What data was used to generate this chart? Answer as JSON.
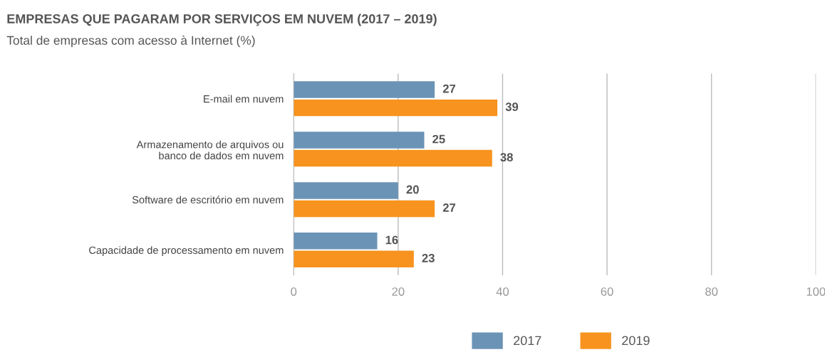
{
  "chart_data": {
    "type": "bar",
    "orientation": "horizontal",
    "title": "EMPRESAS QUE PAGARAM POR SERVIÇOS EM NUVEM (2017 – 2019)",
    "subtitle": "Total de empresas com acesso à Internet (%)",
    "categories": [
      "E-mail em nuvem",
      "Armazenamento de arquivos ou\nbanco de dados em nuvem",
      "Software de escritório em nuvem",
      "Capacidade de processamento em nuvem"
    ],
    "series": [
      {
        "name": "2017",
        "color": "#6b93b6",
        "values": [
          27,
          25,
          20,
          16
        ]
      },
      {
        "name": "2019",
        "color": "#f7931e",
        "values": [
          39,
          38,
          27,
          23
        ]
      }
    ],
    "xlim": [
      0,
      100
    ],
    "xticks": [
      0,
      20,
      40,
      60,
      80,
      100
    ],
    "grid": "x",
    "legend": "bottom",
    "data_labels": true
  }
}
